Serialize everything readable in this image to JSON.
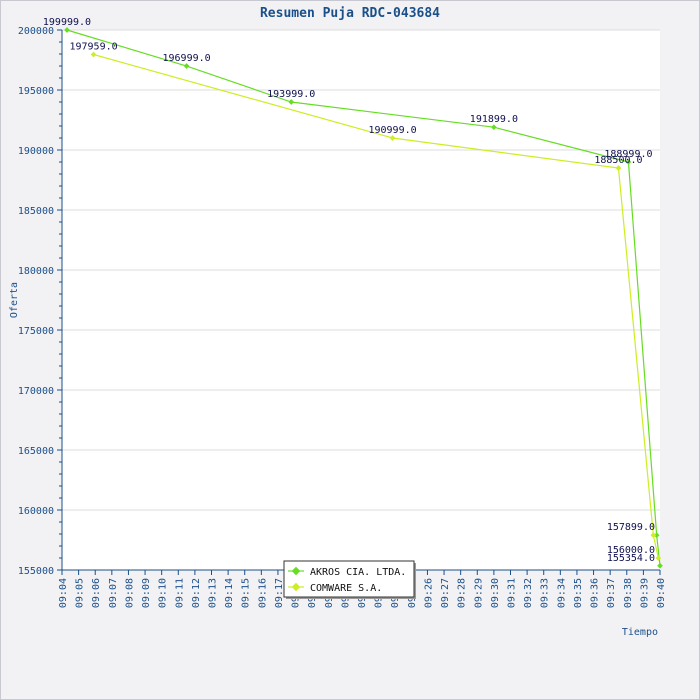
{
  "chart_data": {
    "type": "line",
    "title": "Resumen Puja RDC-043684",
    "xlabel": "Tiempo",
    "ylabel": "Oferta",
    "ylim": [
      155000,
      200000
    ],
    "yticks": [
      "155000",
      "160000",
      "165000",
      "170000",
      "175000",
      "180000",
      "185000",
      "190000",
      "195000",
      "200000"
    ],
    "xticks": [
      "09:04",
      "09:05",
      "09:06",
      "09:07",
      "09:08",
      "09:09",
      "09:10",
      "09:11",
      "09:12",
      "09:13",
      "09:14",
      "09:15",
      "09:16",
      "09:17",
      "09:18",
      "09:19",
      "09:20",
      "09:21",
      "09:22",
      "09:23",
      "09:24",
      "09:25",
      "09:26",
      "09:27",
      "09:28",
      "09:29",
      "09:30",
      "09:31",
      "09:32",
      "09:33",
      "09:34",
      "09:35",
      "09:36",
      "09:37",
      "09:38",
      "09:39",
      "09:40"
    ],
    "xrange_minutes": [
      0,
      36
    ],
    "grid": "horizontal",
    "legend_position": "bottom-center",
    "series": [
      {
        "name": "AKROS CIA. LTDA.",
        "color": "#66dd22",
        "points": [
          {
            "t": 0.3,
            "y": 199999.0,
            "label": "199999.0"
          },
          {
            "t": 7.5,
            "y": 196999.0,
            "label": "196999.0"
          },
          {
            "t": 13.8,
            "y": 193999.0,
            "label": "193999.0"
          },
          {
            "t": 26.0,
            "y": 191899.0,
            "label": "191899.0"
          },
          {
            "t": 34.1,
            "y": 188999.0,
            "label": "188999.0"
          },
          {
            "t": 35.8,
            "y": 157899.0,
            "label": "157899.0"
          },
          {
            "t": 36.0,
            "y": 155354.0,
            "label": "155354.0"
          }
        ]
      },
      {
        "name": "COMWARE S.A.",
        "color": "#ccee22",
        "points": [
          {
            "t": 1.9,
            "y": 197959.0,
            "label": "197959.0"
          },
          {
            "t": 19.9,
            "y": 190999.0,
            "label": "190999.0"
          },
          {
            "t": 33.5,
            "y": 188500.0,
            "label": "188500.0"
          },
          {
            "t": 35.6,
            "y": 157899.0,
            "label": ""
          },
          {
            "t": 35.9,
            "y": 156000.0,
            "label": "156000.0"
          }
        ]
      }
    ]
  }
}
